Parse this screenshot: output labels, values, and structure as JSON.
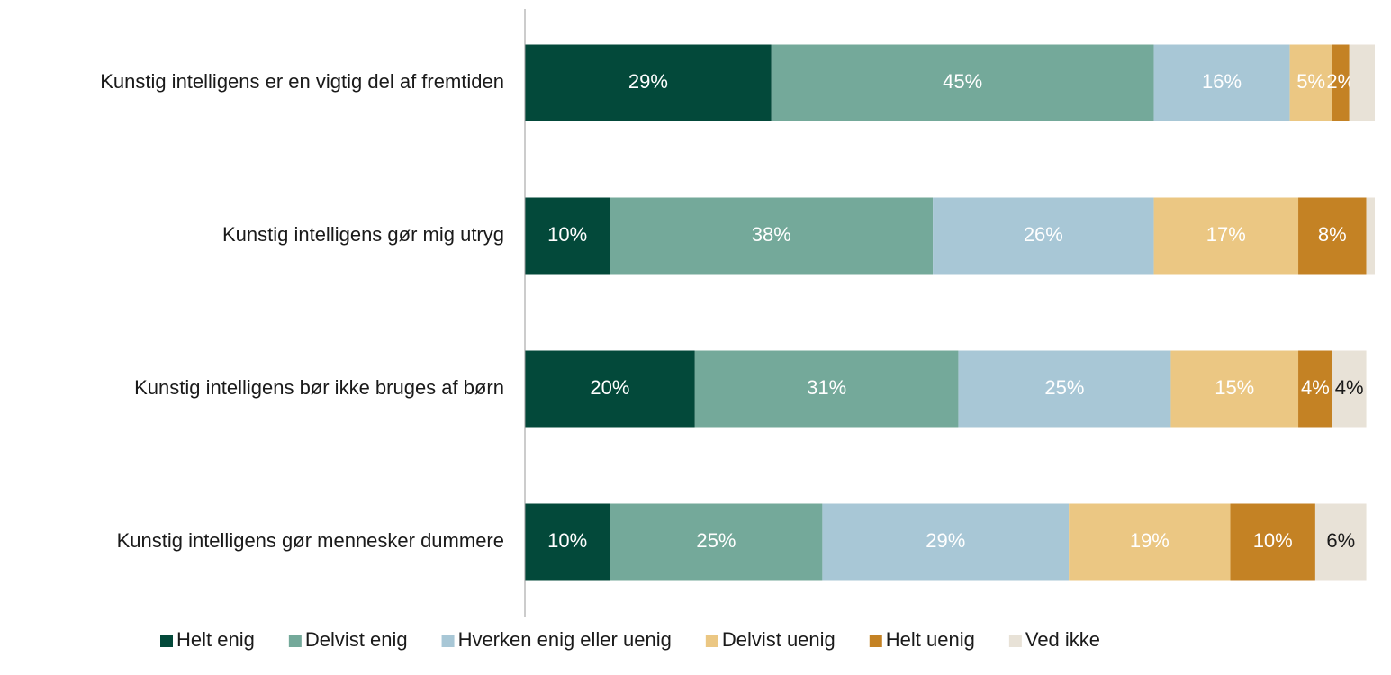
{
  "chart_data": {
    "type": "stacked-barh",
    "categories": [
      "Kunstig intelligens er en vigtig del af fremtiden",
      "Kunstig intelligens gør mig utryg",
      "Kunstig intelligens bør ikke bruges af børn",
      "Kunstig intelligens gør mennesker dummere"
    ],
    "xlim": [
      0,
      100
    ],
    "legend": "bottom",
    "series": [
      {
        "name": "Helt enig",
        "color": "#03493a",
        "label_color": "#ffffff",
        "values": [
          29,
          10,
          20,
          10
        ],
        "value_labels": [
          "29%",
          "10%",
          "20%",
          "10%"
        ]
      },
      {
        "name": "Delvist enig",
        "color": "#74a99a",
        "label_color": "#ffffff",
        "values": [
          45,
          38,
          31,
          25
        ],
        "value_labels": [
          "45%",
          "38%",
          "31%",
          "25%"
        ]
      },
      {
        "name": "Hverken enig eller uenig",
        "color": "#a8c7d6",
        "label_color": "#ffffff",
        "values": [
          16,
          26,
          25,
          29
        ],
        "value_labels": [
          "16%",
          "26%",
          "25%",
          "29%"
        ]
      },
      {
        "name": "Delvist uenig",
        "color": "#ebc783",
        "label_color": "#ffffff",
        "values": [
          5,
          17,
          15,
          19
        ],
        "value_labels": [
          "5%",
          "17%",
          "15%",
          "19%"
        ]
      },
      {
        "name": "Helt uenig",
        "color": "#c48224",
        "label_color": "#ffffff",
        "values": [
          2,
          8,
          4,
          10
        ],
        "value_labels": [
          "2%",
          "8%",
          "4%",
          "10%"
        ]
      },
      {
        "name": "Ved ikke",
        "color": "#e8e2d7",
        "label_color": "#1a1a1a",
        "values": [
          3,
          1,
          4,
          6
        ],
        "value_labels": [
          null,
          null,
          "4%",
          "6%"
        ]
      }
    ]
  }
}
